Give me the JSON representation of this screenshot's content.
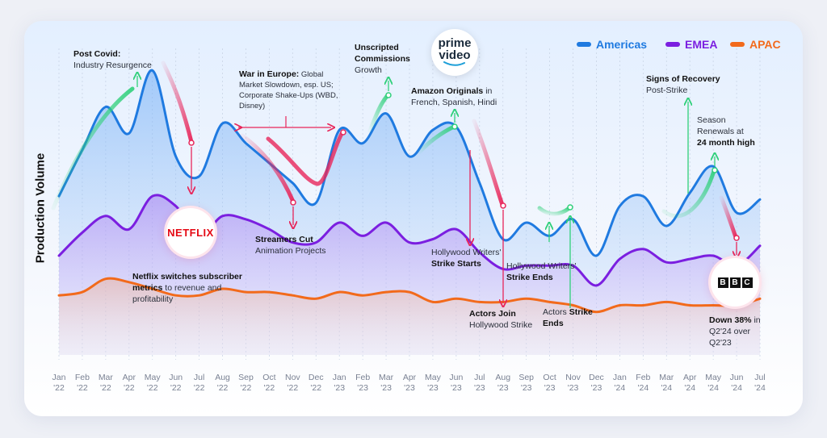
{
  "chart_data": {
    "type": "line",
    "ylabel": "Production Volume",
    "x": [
      {
        "m": "Jan",
        "y": "'22"
      },
      {
        "m": "Feb",
        "y": "'22"
      },
      {
        "m": "Mar",
        "y": "'22"
      },
      {
        "m": "Apr",
        "y": "'22"
      },
      {
        "m": "May",
        "y": "'22"
      },
      {
        "m": "Jun",
        "y": "'22"
      },
      {
        "m": "Jul",
        "y": "'22"
      },
      {
        "m": "Aug",
        "y": "'22"
      },
      {
        "m": "Sep",
        "y": "'22"
      },
      {
        "m": "Oct",
        "y": "'22"
      },
      {
        "m": "Nov",
        "y": "'22"
      },
      {
        "m": "Dec",
        "y": "'22"
      },
      {
        "m": "Jan",
        "y": "'23"
      },
      {
        "m": "Feb",
        "y": "'23"
      },
      {
        "m": "Mar",
        "y": "'23"
      },
      {
        "m": "Apr",
        "y": "'23"
      },
      {
        "m": "May",
        "y": "'23"
      },
      {
        "m": "Jun",
        "y": "'23"
      },
      {
        "m": "Jul",
        "y": "'23"
      },
      {
        "m": "Aug",
        "y": "'23"
      },
      {
        "m": "Sep",
        "y": "'23"
      },
      {
        "m": "Oct",
        "y": "'23"
      },
      {
        "m": "Nov",
        "y": "'23"
      },
      {
        "m": "Dec",
        "y": "'23"
      },
      {
        "m": "Jan",
        "y": "'24"
      },
      {
        "m": "Feb",
        "y": "'24"
      },
      {
        "m": "Mar",
        "y": "'24"
      },
      {
        "m": "Apr",
        "y": "'24"
      },
      {
        "m": "May",
        "y": "'24"
      },
      {
        "m": "Jun",
        "y": "'24"
      },
      {
        "m": "Jul",
        "y": "'24"
      }
    ],
    "series": [
      {
        "name": "Americas",
        "color": "#1f7ae0",
        "values": [
          48,
          62,
          75,
          67,
          86,
          60,
          54,
          70,
          64,
          58,
          52,
          46,
          68,
          64,
          73,
          60,
          68,
          69,
          52,
          35,
          40,
          36,
          41,
          30,
          45,
          48,
          39,
          49,
          57,
          43,
          47
        ]
      },
      {
        "name": "EMEA",
        "color": "#7b1fe0",
        "values": [
          30,
          37,
          42,
          38,
          48,
          45,
          36,
          42,
          41,
          38,
          34,
          34,
          40,
          36,
          40,
          34,
          35,
          38,
          31,
          26,
          27,
          27,
          27,
          21,
          29,
          32,
          28,
          29,
          30,
          27,
          33
        ]
      },
      {
        "name": "APAC",
        "color": "#f26a1b",
        "values": [
          18,
          19,
          23,
          22,
          20,
          18,
          18,
          20,
          19,
          19,
          18,
          17,
          19,
          18,
          19,
          19,
          16,
          17,
          16,
          16,
          17,
          16,
          15,
          13,
          15,
          15,
          16,
          15,
          15,
          15,
          17
        ]
      }
    ],
    "ylim": [
      0,
      100
    ],
    "legend": "top-right"
  },
  "legend": {
    "americas": "Americas",
    "emea": "EMEA",
    "apac": "APAC"
  },
  "logos": {
    "netflix": "NETFLIX",
    "prime_top": "prime",
    "prime_bottom": "video",
    "bbc": [
      "B",
      "B",
      "C"
    ]
  },
  "annotations": {
    "post_covid": {
      "bold": "Post Covid:",
      "text": "Industry Resurgence"
    },
    "war_europe": {
      "bold": "War in Europe:",
      "l1": "Global",
      "l2": "Market Slowdown, esp. US;",
      "l3": "Corporate Shake-Ups (WBD,",
      "l4": "Disney)"
    },
    "unscripted": {
      "bold1": "Unscripted",
      "bold2": "Commissions",
      "text": "Growth"
    },
    "amazon": {
      "bold": "Amazon Originals",
      "t1": "in",
      "t2": "French, Spanish, Hindi"
    },
    "recovery": {
      "bold": "Signs of Recovery",
      "text": "Post-Strike"
    },
    "season": {
      "l1": "Season",
      "l2": "Renewals at",
      "bold": "24 month high"
    },
    "streamers": {
      "bold": "Streamers Cut",
      "text": "Animation Projects"
    },
    "netflix_metrics": {
      "bold1": "Netflix switches subscriber",
      "bold2": "metrics",
      "t1": "to revenue and",
      "t2": "profitability"
    },
    "hw_strike": {
      "text": "Hollywood Writers'",
      "bold": "Strike Starts"
    },
    "hw_ends": {
      "text": "Hollywood Writers'",
      "bold": "Strike Ends"
    },
    "actors_join": {
      "bold": "Actors Join",
      "text": "Hollywood Strike"
    },
    "actors_ends": {
      "text": "Actors",
      "bold1": "Strike",
      "bold2": "Ends"
    },
    "down": {
      "bold": "Down 38%",
      "t1": "in",
      "t2": "Q2'24 over",
      "t3": "Q2'23"
    }
  }
}
